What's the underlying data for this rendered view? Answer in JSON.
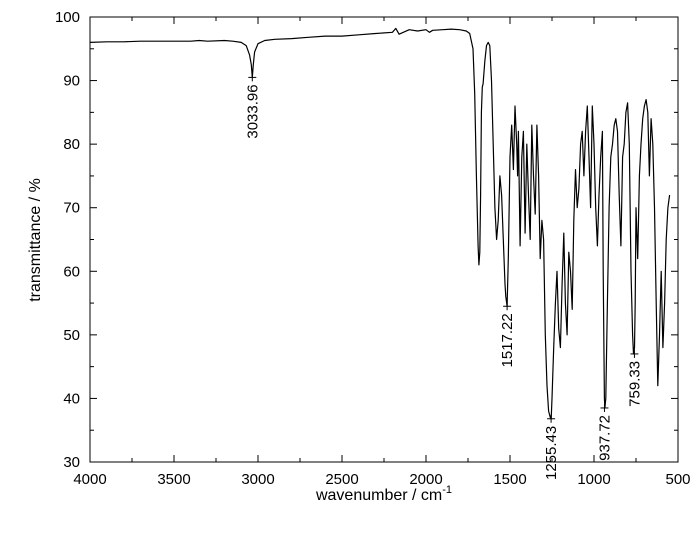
{
  "chart_data": {
    "type": "line",
    "title": "",
    "xlabel": "wavenumber / cm",
    "xlabel_superscript": "-1",
    "ylabel": "transmittance / %",
    "xlim": [
      4000,
      500
    ],
    "ylim": [
      30,
      100
    ],
    "x_ticks": [
      4000,
      3500,
      3000,
      2500,
      2000,
      1500,
      1000,
      500
    ],
    "y_ticks": [
      30,
      40,
      50,
      60,
      70,
      80,
      90,
      100
    ],
    "grid": false,
    "legend": "none",
    "line_color": "#000000",
    "series": [
      {
        "x": [
          4000,
          3900,
          3800,
          3700,
          3600,
          3500,
          3400,
          3350,
          3300,
          3200,
          3150,
          3100,
          3070,
          3050,
          3040,
          3034,
          3028,
          3020,
          3000,
          2960,
          2900,
          2800,
          2700,
          2600,
          2500,
          2400,
          2300,
          2200,
          2180,
          2160,
          2100,
          2050,
          2000,
          1980,
          1960,
          1900,
          1850,
          1800,
          1760,
          1740,
          1720,
          1710,
          1700,
          1690,
          1685,
          1680,
          1675,
          1670,
          1665,
          1660,
          1650,
          1640,
          1630,
          1620,
          1610,
          1600,
          1590,
          1580,
          1570,
          1560,
          1550,
          1540,
          1530,
          1525,
          1517,
          1510,
          1500,
          1490,
          1480,
          1470,
          1460,
          1455,
          1450,
          1440,
          1430,
          1420,
          1410,
          1400,
          1390,
          1380,
          1370,
          1360,
          1350,
          1340,
          1330,
          1320,
          1310,
          1300,
          1290,
          1280,
          1270,
          1260,
          1255,
          1250,
          1240,
          1230,
          1220,
          1210,
          1200,
          1190,
          1180,
          1170,
          1160,
          1150,
          1140,
          1130,
          1120,
          1110,
          1100,
          1090,
          1080,
          1070,
          1060,
          1050,
          1040,
          1030,
          1020,
          1010,
          1000,
          990,
          980,
          970,
          960,
          950,
          945,
          940,
          938,
          935,
          930,
          920,
          910,
          900,
          890,
          880,
          870,
          860,
          850,
          840,
          830,
          820,
          810,
          800,
          790,
          780,
          770,
          765,
          759,
          755,
          750,
          740,
          730,
          720,
          710,
          700,
          690,
          680,
          670,
          660,
          650,
          640,
          630,
          620,
          610,
          600,
          590,
          580,
          570,
          560,
          550
        ],
        "y": [
          96.0,
          96.1,
          96.1,
          96.2,
          96.2,
          96.2,
          96.2,
          96.3,
          96.2,
          96.3,
          96.2,
          96.0,
          95.5,
          94.0,
          92.5,
          90.5,
          92.5,
          94.5,
          95.8,
          96.3,
          96.5,
          96.6,
          96.8,
          97.0,
          97.0,
          97.2,
          97.4,
          97.6,
          98.2,
          97.3,
          98.0,
          97.8,
          98.0,
          97.6,
          97.9,
          98.0,
          98.1,
          98.0,
          97.8,
          97.4,
          95.0,
          88.0,
          75.0,
          64.0,
          61.0,
          63.0,
          72.0,
          85.0,
          89.0,
          89.5,
          93.0,
          95.5,
          96.0,
          95.5,
          90.0,
          80.0,
          70.0,
          65.0,
          68.0,
          75.0,
          72.0,
          65.0,
          58.0,
          56.0,
          54.5,
          62.0,
          78.0,
          83.0,
          76.0,
          86.0,
          80.0,
          75.0,
          82.0,
          64.0,
          78.0,
          82.0,
          66.0,
          80.0,
          72.0,
          65.0,
          83.0,
          75.0,
          69.0,
          83.0,
          75.0,
          62.0,
          68.0,
          65.0,
          50.0,
          42.0,
          38.0,
          37.0,
          36.8,
          40.0,
          48.0,
          55.0,
          60.0,
          51.0,
          48.0,
          58.0,
          66.0,
          55.0,
          50.0,
          63.0,
          60.0,
          54.0,
          68.0,
          76.0,
          70.0,
          73.0,
          80.0,
          82.0,
          75.0,
          82.0,
          86.0,
          78.0,
          70.0,
          86.0,
          80.0,
          70.0,
          64.0,
          72.0,
          78.0,
          82.0,
          60.0,
          45.0,
          40.0,
          38.5,
          40.0,
          55.0,
          70.0,
          78.0,
          80.0,
          83.0,
          84.0,
          82.0,
          72.0,
          64.0,
          78.0,
          80.0,
          85.0,
          86.5,
          80.0,
          60.0,
          50.0,
          47.0,
          48.0,
          55.0,
          70.0,
          62.0,
          75.0,
          80.0,
          84.0,
          86.0,
          87.0,
          85.0,
          75.0,
          84.0,
          80.0,
          70.0,
          55.0,
          42.0,
          50.0,
          60.0,
          48.0,
          55.0,
          65.0,
          70.0,
          72.0
        ]
      }
    ],
    "annotations": [
      {
        "x": 3033.96,
        "y": 90.5,
        "label": "3033.96"
      },
      {
        "x": 1517.22,
        "y": 54.5,
        "label": "1517.22"
      },
      {
        "x": 1255.43,
        "y": 36.8,
        "label": "1255.43"
      },
      {
        "x": 937.72,
        "y": 38.5,
        "label": "937.72"
      },
      {
        "x": 759.33,
        "y": 47.0,
        "label": "759.33"
      }
    ]
  }
}
